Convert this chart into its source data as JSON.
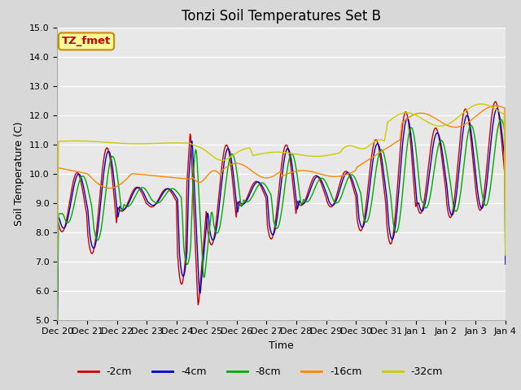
{
  "title": "Tonzi Soil Temperatures Set B",
  "xlabel": "Time",
  "ylabel": "Soil Temperature (C)",
  "ylim": [
    5.0,
    15.0
  ],
  "yticks": [
    5.0,
    6.0,
    7.0,
    8.0,
    9.0,
    10.0,
    11.0,
    12.0,
    13.0,
    14.0,
    15.0
  ],
  "xtick_labels": [
    "Dec 20",
    "Dec 21",
    "Dec 22",
    "Dec 23",
    "Dec 24",
    "Dec 25",
    "Dec 26",
    "Dec 27",
    "Dec 28",
    "Dec 29",
    "Dec 30",
    "Dec 31",
    "Jan 1",
    "Jan 2",
    "Jan 3",
    "Jan 4"
  ],
  "series_colors": [
    "#cc0000",
    "#0000cc",
    "#00aa00",
    "#ff8800",
    "#cccc00"
  ],
  "series_labels": [
    "-2cm",
    "-4cm",
    "-8cm",
    "-16cm",
    "-32cm"
  ],
  "fig_facecolor": "#d8d8d8",
  "plot_bg_color": "#e8e8e8",
  "legend_label": "TZ_fmet",
  "legend_box_facecolor": "#ffff99",
  "legend_box_edgecolor": "#cc8800",
  "legend_text_color": "#cc0000",
  "title_fontsize": 12,
  "label_fontsize": 9,
  "tick_fontsize": 8,
  "legend_fontsize": 9
}
